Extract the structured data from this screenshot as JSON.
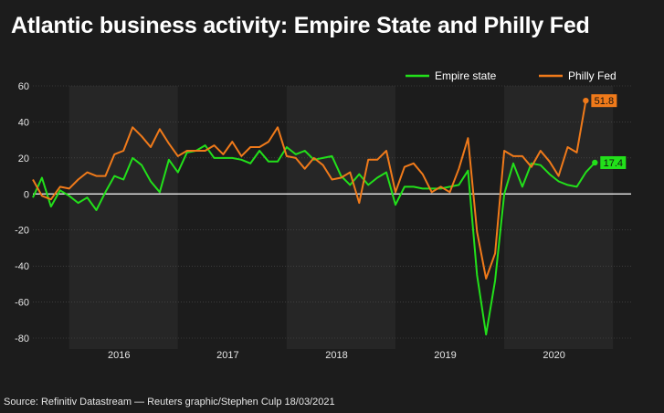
{
  "header": {
    "title": "Atlantic business activity: Empire State and Philly Fed"
  },
  "footer": {
    "source": "Source: Refinitiv Datastream — Reuters graphic/Stephen Culp 18/03/2021"
  },
  "colors": {
    "background": "#1c1c1c",
    "band": "#262626",
    "empire": "#22e01a",
    "philly": "#f07a1a",
    "grid": "#505050",
    "zero": "#ffffff"
  },
  "chart_data": {
    "type": "line",
    "title": "Atlantic business activity: Empire State and Philly Fed",
    "xlabel": "",
    "ylabel": "",
    "ylim": [
      -80,
      60
    ],
    "yticks": [
      60,
      40,
      20,
      0,
      -20,
      -40,
      -60,
      -80
    ],
    "x_start": "2015-09",
    "x_end": "2021-03",
    "year_labels": [
      "2016",
      "2017",
      "2018",
      "2019",
      "2020"
    ],
    "grid": true,
    "legend_position": "top-right",
    "series": [
      {
        "name": "Empire state",
        "color": "#22e01a",
        "end_label": "17.4",
        "values": [
          [
            "2015-09",
            -2
          ],
          [
            "2015-10",
            9
          ],
          [
            "2015-11",
            -7
          ],
          [
            "2015-12",
            2
          ],
          [
            "2016-01",
            -1
          ],
          [
            "2016-02",
            -5
          ],
          [
            "2016-03",
            -2
          ],
          [
            "2016-04",
            -9
          ],
          [
            "2016-05",
            1
          ],
          [
            "2016-06",
            10
          ],
          [
            "2016-07",
            8
          ],
          [
            "2016-08",
            20
          ],
          [
            "2016-09",
            16
          ],
          [
            "2016-10",
            7
          ],
          [
            "2016-11",
            1
          ],
          [
            "2016-12",
            19
          ],
          [
            "2017-01",
            12
          ],
          [
            "2017-02",
            23
          ],
          [
            "2017-03",
            24
          ],
          [
            "2017-04",
            27
          ],
          [
            "2017-05",
            20
          ],
          [
            "2017-06",
            20
          ],
          [
            "2017-07",
            20
          ],
          [
            "2017-08",
            19
          ],
          [
            "2017-09",
            17
          ],
          [
            "2017-10",
            24
          ],
          [
            "2017-11",
            18
          ],
          [
            "2017-12",
            18
          ],
          [
            "2018-01",
            26
          ],
          [
            "2018-02",
            22
          ],
          [
            "2018-03",
            24
          ],
          [
            "2018-04",
            19
          ],
          [
            "2018-05",
            20
          ],
          [
            "2018-06",
            21
          ],
          [
            "2018-07",
            10
          ],
          [
            "2018-08",
            5
          ],
          [
            "2018-09",
            11
          ],
          [
            "2018-10",
            5
          ],
          [
            "2018-11",
            9
          ],
          [
            "2018-12",
            12
          ],
          [
            "2019-01",
            -6
          ],
          [
            "2019-02",
            4
          ],
          [
            "2019-03",
            4
          ],
          [
            "2019-04",
            3
          ],
          [
            "2019-05",
            3
          ],
          [
            "2019-06",
            3
          ],
          [
            "2019-07",
            4
          ],
          [
            "2019-08",
            5
          ],
          [
            "2019-09",
            13
          ],
          [
            "2019-10",
            -45
          ],
          [
            "2019-11",
            -78
          ],
          [
            "2019-12",
            -48
          ],
          [
            "2020-01",
            0
          ],
          [
            "2020-02",
            17
          ],
          [
            "2020-03",
            4
          ],
          [
            "2020-04",
            17
          ],
          [
            "2020-05",
            16
          ],
          [
            "2020-06",
            11
          ],
          [
            "2020-07",
            7
          ],
          [
            "2020-08",
            5
          ],
          [
            "2020-09",
            4
          ],
          [
            "2020-10",
            12
          ],
          [
            "2020-11",
            17.4
          ]
        ]
      },
      {
        "name": "Philly Fed",
        "color": "#f07a1a",
        "end_label": "51.8",
        "values": [
          [
            "2015-09",
            8
          ],
          [
            "2015-10",
            -1
          ],
          [
            "2015-11",
            -3
          ],
          [
            "2015-12",
            4
          ],
          [
            "2016-01",
            3
          ],
          [
            "2016-02",
            8
          ],
          [
            "2016-03",
            12
          ],
          [
            "2016-04",
            10
          ],
          [
            "2016-05",
            10
          ],
          [
            "2016-06",
            22
          ],
          [
            "2016-07",
            24
          ],
          [
            "2016-08",
            37
          ],
          [
            "2016-09",
            32
          ],
          [
            "2016-10",
            26
          ],
          [
            "2016-11",
            36
          ],
          [
            "2016-12",
            28
          ],
          [
            "2017-01",
            21
          ],
          [
            "2017-02",
            24
          ],
          [
            "2017-03",
            24
          ],
          [
            "2017-04",
            24
          ],
          [
            "2017-05",
            27
          ],
          [
            "2017-06",
            22
          ],
          [
            "2017-07",
            29
          ],
          [
            "2017-08",
            21
          ],
          [
            "2017-09",
            26
          ],
          [
            "2017-10",
            26
          ],
          [
            "2017-11",
            29
          ],
          [
            "2017-12",
            37
          ],
          [
            "2018-01",
            21
          ],
          [
            "2018-02",
            20
          ],
          [
            "2018-03",
            14
          ],
          [
            "2018-04",
            20
          ],
          [
            "2018-05",
            16
          ],
          [
            "2018-06",
            8
          ],
          [
            "2018-07",
            9
          ],
          [
            "2018-08",
            12
          ],
          [
            "2018-09",
            -5
          ],
          [
            "2018-10",
            19
          ],
          [
            "2018-11",
            19
          ],
          [
            "2018-12",
            24
          ],
          [
            "2019-01",
            1
          ],
          [
            "2019-02",
            15
          ],
          [
            "2019-03",
            17
          ],
          [
            "2019-04",
            11
          ],
          [
            "2019-05",
            1
          ],
          [
            "2019-06",
            4
          ],
          [
            "2019-07",
            1
          ],
          [
            "2019-08",
            14
          ],
          [
            "2019-09",
            31
          ],
          [
            "2019-10",
            -21
          ],
          [
            "2019-11",
            -47
          ],
          [
            "2019-12",
            -33
          ],
          [
            "2020-01",
            24
          ],
          [
            "2020-02",
            21
          ],
          [
            "2020-03",
            21
          ],
          [
            "2020-04",
            15
          ],
          [
            "2020-05",
            24
          ],
          [
            "2020-06",
            18
          ],
          [
            "2020-07",
            10
          ],
          [
            "2020-08",
            26
          ],
          [
            "2020-09",
            23
          ],
          [
            "2020-10",
            51.8
          ]
        ]
      }
    ]
  }
}
